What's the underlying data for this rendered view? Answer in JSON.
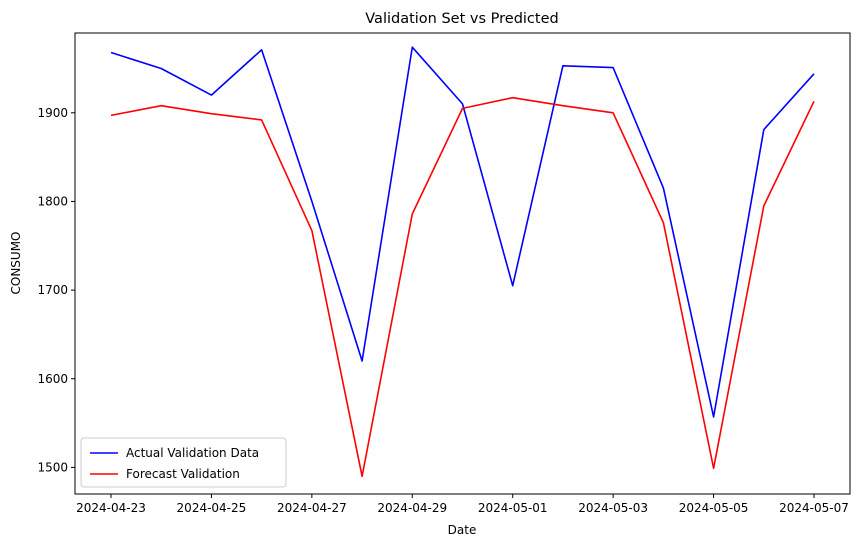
{
  "chart_data": {
    "type": "line",
    "title": "Validation Set vs Predicted",
    "xlabel": "Date",
    "ylabel": "CONSUMO",
    "x": [
      "2024-04-23",
      "2024-04-24",
      "2024-04-25",
      "2024-04-26",
      "2024-04-27",
      "2024-04-28",
      "2024-04-29",
      "2024-04-30",
      "2024-05-01",
      "2024-05-02",
      "2024-05-03",
      "2024-05-04",
      "2024-05-05",
      "2024-05-06",
      "2024-05-07"
    ],
    "x_ticks": [
      "2024-04-23",
      "2024-04-25",
      "2024-04-27",
      "2024-04-29",
      "2024-05-01",
      "2024-05-03",
      "2024-05-05",
      "2024-05-07"
    ],
    "y_ticks": [
      1500,
      1600,
      1700,
      1800,
      1900
    ],
    "ylim": [
      1470,
      1990
    ],
    "grid": false,
    "legend_position": "lower-left",
    "series": [
      {
        "name": "Actual Validation Data",
        "color": "#0000ff",
        "values": [
          1968,
          1950,
          1920,
          1971,
          1800,
          1620,
          1974,
          1910,
          1705,
          1953,
          1951,
          1815,
          1557,
          1881,
          1944
        ]
      },
      {
        "name": "Forecast Validation",
        "color": "#ff0000",
        "values": [
          1897,
          1908,
          1899,
          1892,
          1767,
          1490,
          1786,
          1905,
          1917,
          1908,
          1900,
          1776,
          1499,
          1795,
          1913
        ]
      }
    ]
  }
}
